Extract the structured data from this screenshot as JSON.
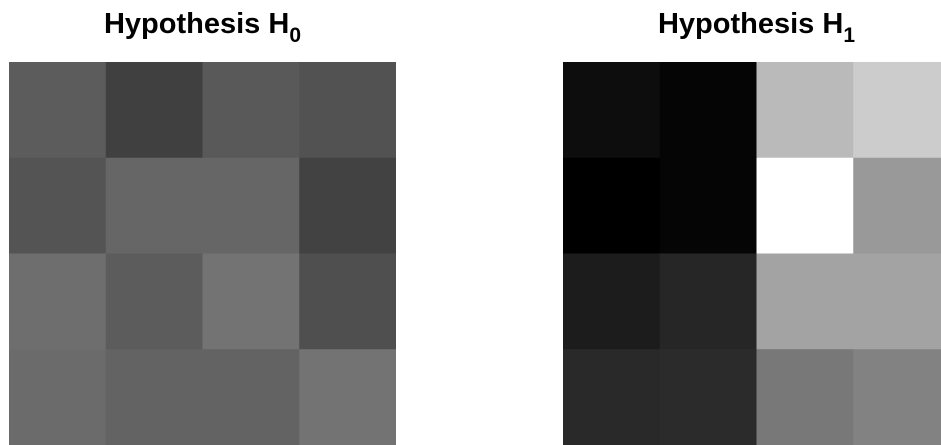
{
  "chart_data": [
    {
      "type": "heatmap",
      "title": "Hypothesis H",
      "title_subscript": "0",
      "colormap": "gray",
      "grid": false,
      "rows": 4,
      "cols": 4,
      "values": [
        [
          0.36,
          0.25,
          0.35,
          0.32
        ],
        [
          0.33,
          0.4,
          0.4,
          0.26
        ],
        [
          0.43,
          0.36,
          0.45,
          0.31
        ],
        [
          0.42,
          0.39,
          0.39,
          0.45
        ]
      ]
    },
    {
      "type": "heatmap",
      "title": "Hypothesis H",
      "title_subscript": "1",
      "colormap": "gray",
      "grid": false,
      "rows": 4,
      "cols": 4,
      "values": [
        [
          0.05,
          0.02,
          0.73,
          0.8
        ],
        [
          0.0,
          0.02,
          1.0,
          0.6
        ],
        [
          0.11,
          0.15,
          0.64,
          0.64
        ],
        [
          0.16,
          0.17,
          0.47,
          0.51
        ]
      ]
    }
  ]
}
